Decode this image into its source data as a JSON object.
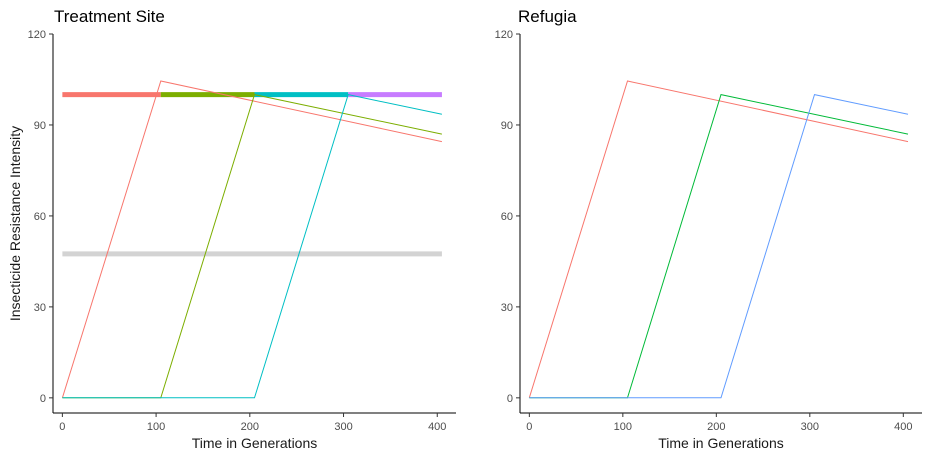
{
  "chart_data": [
    {
      "type": "line",
      "title": "Treatment Site",
      "xlabel": "Time in Generations",
      "ylabel": "Insecticide Resistance Intensity",
      "xlim": [
        -10,
        420
      ],
      "ylim": [
        -5,
        120
      ],
      "xticks": [
        0,
        100,
        200,
        300,
        400
      ],
      "yticks": [
        0,
        30,
        60,
        90,
        120
      ],
      "grid": false,
      "legend": "none",
      "thick_segments": [
        {
          "x": [
            0,
            105
          ],
          "y": [
            100,
            100
          ],
          "color": "#F8766D"
        },
        {
          "x": [
            105,
            205
          ],
          "y": [
            100,
            100
          ],
          "color": "#7CAE00"
        },
        {
          "x": [
            205,
            305
          ],
          "y": [
            100,
            100
          ],
          "color": "#00BFC4"
        },
        {
          "x": [
            305,
            405
          ],
          "y": [
            100,
            100
          ],
          "color": "#C77CFF"
        },
        {
          "x": [
            0,
            405
          ],
          "y": [
            47.5,
            47.5
          ],
          "color": "#D3D3D3"
        }
      ],
      "series": [
        {
          "color": "#F8766D",
          "x": [
            0,
            105,
            405
          ],
          "y": [
            0,
            104.5,
            84.5
          ]
        },
        {
          "color": "#7CAE00",
          "x": [
            0,
            105,
            205,
            405
          ],
          "y": [
            0,
            0,
            100,
            87
          ]
        },
        {
          "color": "#00BFC4",
          "x": [
            0,
            205,
            305,
            405
          ],
          "y": [
            0,
            0,
            100,
            93.5
          ]
        }
      ]
    },
    {
      "type": "line",
      "title": "Refugia",
      "xlabel": "Time in Generations",
      "ylabel": "",
      "xlim": [
        -10,
        420
      ],
      "ylim": [
        -5,
        120
      ],
      "xticks": [
        0,
        100,
        200,
        300,
        400
      ],
      "yticks": [
        0,
        30,
        60,
        90,
        120
      ],
      "grid": false,
      "legend": "none",
      "thick_segments": [],
      "series": [
        {
          "color": "#F8766D",
          "x": [
            0,
            105,
            405
          ],
          "y": [
            0,
            104.5,
            84.5
          ]
        },
        {
          "color": "#00BA38",
          "x": [
            0,
            105,
            205,
            405
          ],
          "y": [
            0,
            0,
            100,
            87
          ]
        },
        {
          "color": "#619CFF",
          "x": [
            0,
            205,
            305,
            405
          ],
          "y": [
            0,
            0,
            100,
            93.5
          ]
        }
      ]
    }
  ]
}
